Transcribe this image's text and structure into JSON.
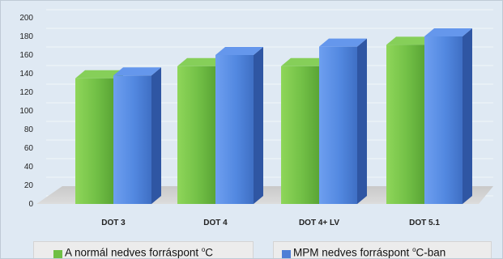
{
  "chart_data": {
    "type": "bar",
    "subtype": "3d-clustered-column",
    "title": "",
    "xlabel": "",
    "ylabel": "",
    "categories": [
      "DOT 3",
      "DOT 4",
      "DOT 4+ LV",
      "DOT 5.1"
    ],
    "series": [
      {
        "name": "A normál nedves forráspont °C",
        "legend_prefix": "A normál nedves forráspont ",
        "legend_suffix": "C",
        "color": "#6fbf44",
        "values": [
          135,
          148,
          148,
          171
        ]
      },
      {
        "name": "MPM nedves forráspont °C-ban",
        "legend_prefix": "MPM nedves forráspont ",
        "legend_suffix": "C-ban",
        "color": "#4f7fd6",
        "values": [
          138,
          160,
          169,
          180
        ]
      }
    ],
    "ylim": [
      0,
      200
    ],
    "yticks": [
      0,
      20,
      40,
      60,
      80,
      100,
      120,
      140,
      160,
      180,
      200
    ],
    "grid": true,
    "legend_position": "bottom"
  }
}
